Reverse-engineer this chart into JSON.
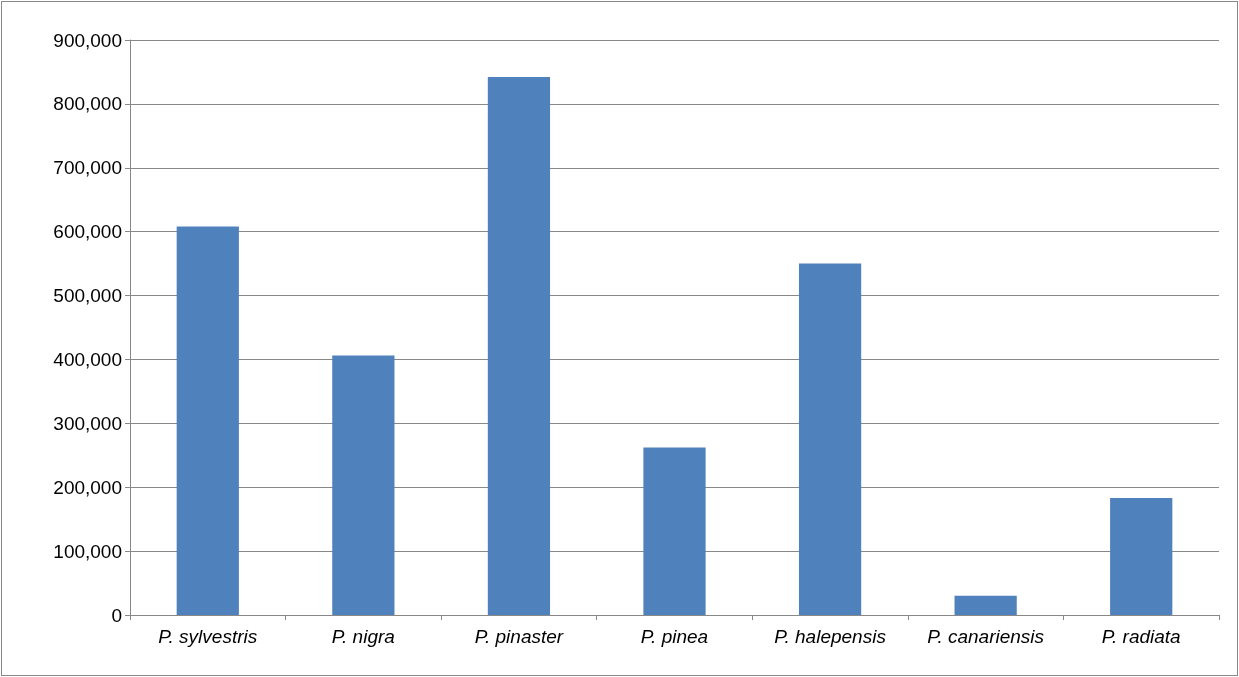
{
  "chart_data": {
    "type": "bar",
    "categories": [
      "P. sylvestris",
      "P. nigra",
      "P. pinaster",
      "P. pinea",
      "P. halepensis",
      "P. canariensis",
      "P. radiata"
    ],
    "values": [
      608000,
      406000,
      842000,
      262000,
      550000,
      30000,
      183000
    ],
    "color": "#4f81bd",
    "ylim": [
      0,
      900000
    ],
    "yticks": [
      {
        "value": 0,
        "label": "0"
      },
      {
        "value": 100000,
        "label": "100,000"
      },
      {
        "value": 200000,
        "label": "200,000"
      },
      {
        "value": 300000,
        "label": "300,000"
      },
      {
        "value": 400000,
        "label": "400,000"
      },
      {
        "value": 500000,
        "label": "500,000"
      },
      {
        "value": 600000,
        "label": "600,000"
      },
      {
        "value": 700000,
        "label": "700,000"
      },
      {
        "value": 800000,
        "label": "800,000"
      },
      {
        "value": 900000,
        "label": "900,000"
      }
    ],
    "grid": true
  }
}
